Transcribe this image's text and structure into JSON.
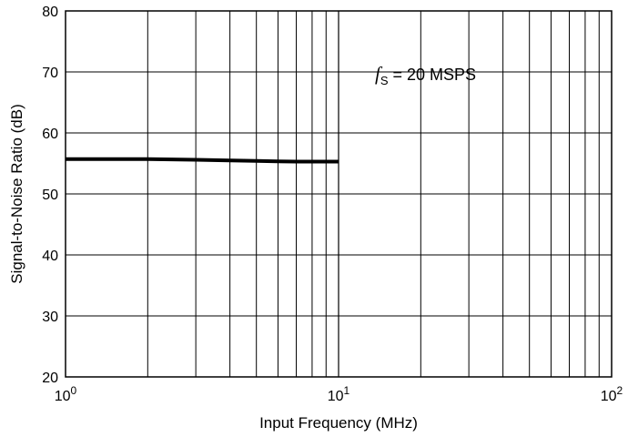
{
  "chart_data": {
    "type": "line",
    "title": "",
    "xlabel": "Input Frequency (MHz)",
    "ylabel": "Signal-to-Noise Ratio (dB)",
    "xscale": "log",
    "xlim": [
      1,
      100
    ],
    "ylim": [
      20,
      80
    ],
    "xticks": [
      {
        "base": "10",
        "exp": "0"
      },
      {
        "base": "10",
        "exp": "1"
      },
      {
        "base": "10",
        "exp": "2"
      }
    ],
    "yticks": [
      "20",
      "30",
      "40",
      "50",
      "60",
      "70",
      "80"
    ],
    "grid": true,
    "annotation": {
      "symbol": "f",
      "subscript": "S",
      "text": " = 20 MSPS"
    },
    "series": [
      {
        "color": "#000000",
        "x": [
          1,
          2,
          3,
          4,
          5,
          6,
          7,
          8,
          9,
          10
        ],
        "y": [
          55.7,
          55.7,
          55.6,
          55.5,
          55.4,
          55.35,
          55.3,
          55.3,
          55.3,
          55.3
        ]
      }
    ]
  }
}
